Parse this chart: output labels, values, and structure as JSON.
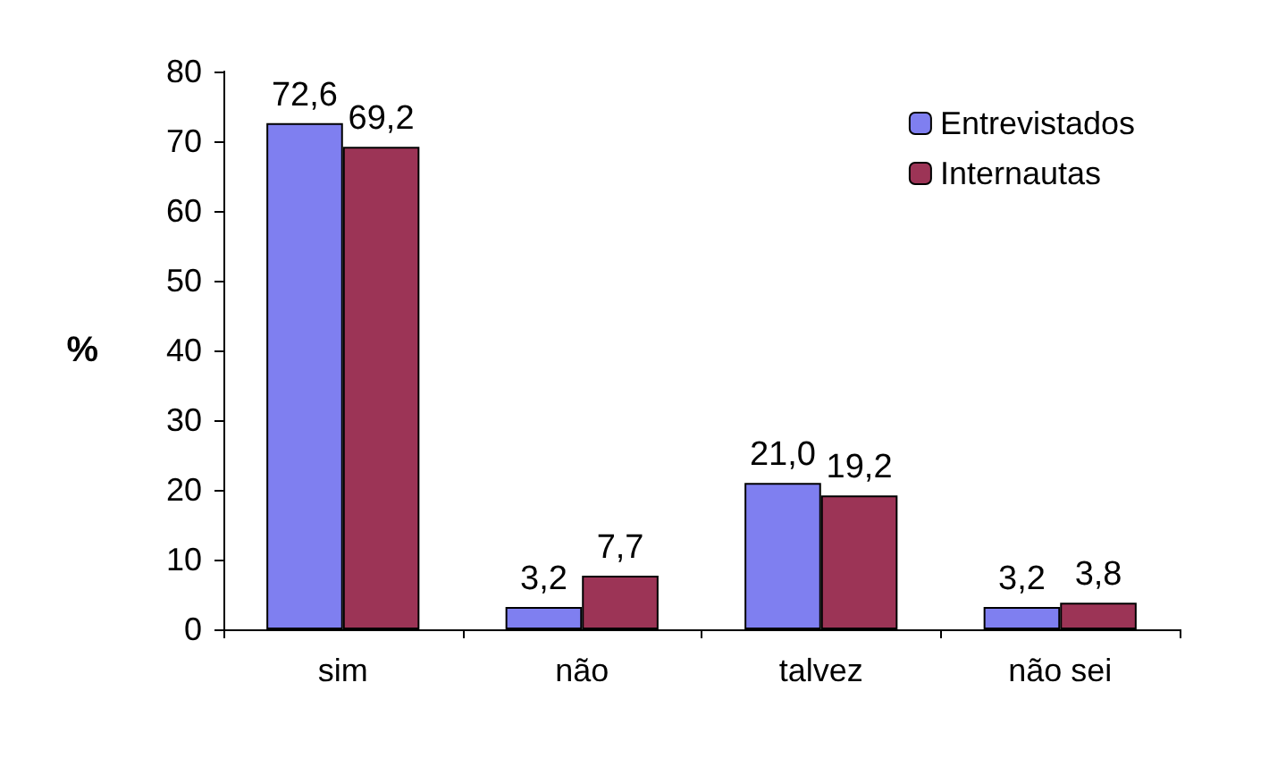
{
  "chart_data": {
    "type": "bar",
    "ylabel": "%",
    "categories": [
      "sim",
      "não",
      "talvez",
      "não sei"
    ],
    "series": [
      {
        "name": "Entrevistados",
        "color": "#7f7ff0",
        "values": [
          72.6,
          3.2,
          21.0,
          3.2
        ],
        "value_labels": [
          "72,6",
          "3,2",
          "21,0",
          "3,2"
        ]
      },
      {
        "name": "Internautas",
        "color": "#9c3456",
        "values": [
          69.2,
          7.7,
          19.2,
          3.8
        ],
        "value_labels": [
          "69,2",
          "7,7",
          "19,2",
          "3,8"
        ]
      }
    ],
    "ylim": [
      0,
      80
    ],
    "yticks": [
      0,
      10,
      20,
      30,
      40,
      50,
      60,
      70,
      80
    ],
    "grid": false,
    "legend": "top right"
  }
}
